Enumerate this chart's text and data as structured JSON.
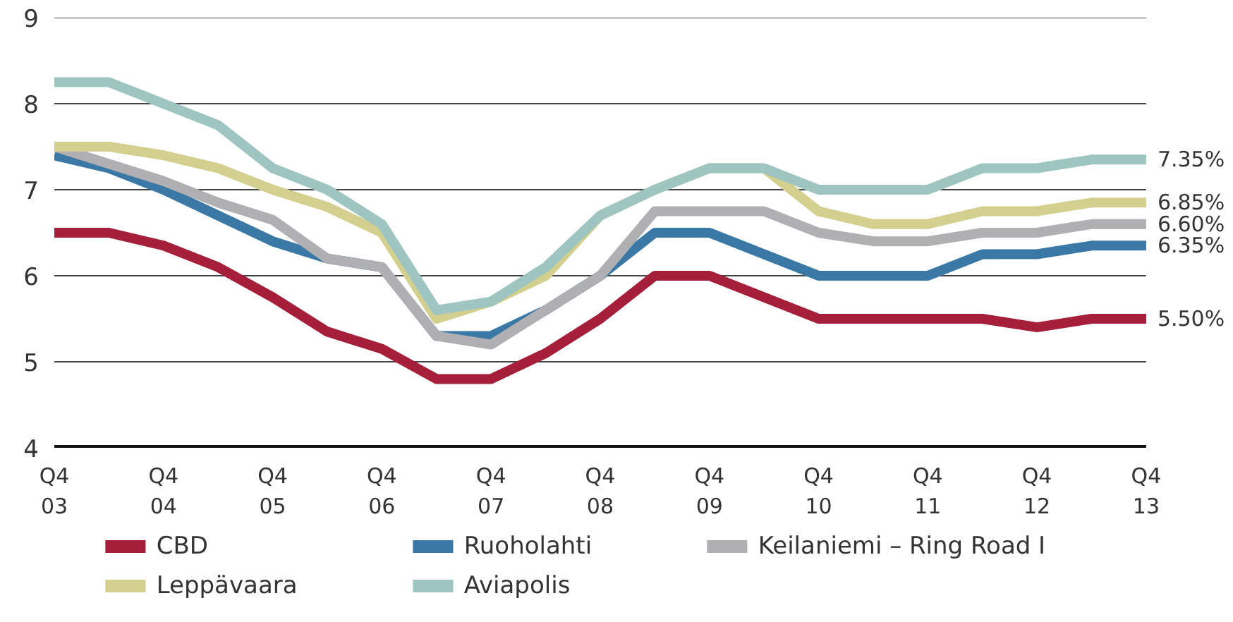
{
  "chart_data": {
    "type": "line",
    "categories": [
      "Q4\n03",
      null,
      "Q4\n04",
      null,
      "Q4\n05",
      null,
      "Q4\n06",
      null,
      "Q4\n07",
      null,
      "Q4\n08",
      null,
      "Q4\n09",
      null,
      "Q4\n10",
      null,
      "Q4\n11",
      null,
      "Q4\n12",
      null,
      "Q4\n13"
    ],
    "ylim": [
      4,
      9
    ],
    "yticks": [
      4,
      5,
      6,
      7,
      8,
      9
    ],
    "grid": "y",
    "legend": "bottom",
    "line_style": "solid",
    "series": [
      {
        "name": "CBD",
        "color": "#a51f3b",
        "values": [
          6.5,
          6.5,
          6.35,
          6.1,
          5.75,
          5.35,
          5.15,
          4.8,
          4.8,
          5.1,
          5.5,
          6.0,
          6.0,
          5.75,
          5.5,
          5.5,
          5.5,
          5.5,
          5.4,
          5.5,
          5.5
        ]
      },
      {
        "name": "Ruoholahti",
        "color": "#3a78a6",
        "values": [
          7.4,
          7.25,
          7.0,
          6.7,
          6.4,
          6.2,
          6.1,
          5.3,
          5.3,
          5.6,
          6.0,
          6.5,
          6.5,
          6.25,
          6.0,
          6.0,
          6.0,
          6.25,
          6.25,
          6.35,
          6.35
        ]
      },
      {
        "name": "Keilaniemi – Ring Road I",
        "color": "#b0b0b3",
        "values": [
          7.5,
          7.3,
          7.1,
          6.85,
          6.65,
          6.2,
          6.1,
          5.3,
          5.2,
          5.6,
          6.0,
          6.75,
          6.75,
          6.75,
          6.5,
          6.4,
          6.4,
          6.5,
          6.5,
          6.6,
          6.6
        ]
      },
      {
        "name": "Leppävaara",
        "color": "#d3cf8e",
        "values": [
          7.5,
          7.5,
          7.4,
          7.25,
          7.0,
          6.8,
          6.5,
          5.5,
          5.7,
          6.0,
          6.7,
          7.0,
          7.25,
          7.25,
          6.75,
          6.6,
          6.6,
          6.75,
          6.75,
          6.85,
          6.85
        ]
      },
      {
        "name": "Aviapolis",
        "color": "#9ec5c0",
        "values": [
          8.25,
          8.25,
          8.0,
          7.75,
          7.25,
          7.0,
          6.6,
          5.6,
          5.7,
          6.1,
          6.7,
          7.0,
          7.25,
          7.25,
          7.0,
          7.0,
          7.0,
          7.25,
          7.25,
          7.35,
          7.35
        ]
      }
    ],
    "annotations": [
      {
        "text": "7.35%",
        "x": "Q4\n13",
        "y": 7.35
      },
      {
        "text": "6.85%",
        "x": "Q4\n13",
        "y": 6.85
      },
      {
        "text": "6.60%",
        "x": "Q4\n13",
        "y": 6.6
      },
      {
        "text": "6.35%",
        "x": "Q4\n13",
        "y": 6.35
      },
      {
        "text": "5.50%",
        "x": "Q4\n13",
        "y": 5.5
      }
    ]
  }
}
